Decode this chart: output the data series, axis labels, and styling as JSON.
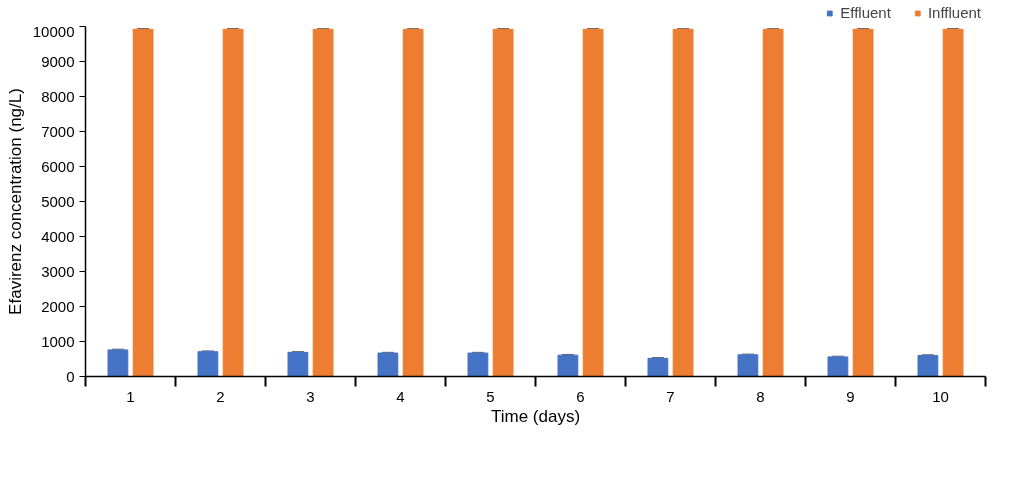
{
  "chart_data": {
    "type": "bar",
    "xlabel": "Time (days)",
    "ylabel": "Efavirenz concentration (ng/L)",
    "categories": [
      "1",
      "2",
      "3",
      "4",
      "5",
      "6",
      "7",
      "8",
      "9",
      "10"
    ],
    "series": [
      {
        "name": "Effluent",
        "color": "#4472c4",
        "values": [
          760,
          710,
          690,
          670,
          670,
          610,
          520,
          620,
          560,
          600
        ],
        "errors": [
          20,
          20,
          20,
          20,
          20,
          20,
          20,
          20,
          20,
          20
        ]
      },
      {
        "name": "Inffluent",
        "color": "#ed7d31",
        "values": [
          9920,
          9920,
          9920,
          9920,
          9920,
          9920,
          9920,
          9920,
          9920,
          9920
        ],
        "errors": [
          20,
          20,
          20,
          20,
          20,
          20,
          20,
          20,
          20,
          20
        ]
      }
    ],
    "ylim": [
      0,
      10000
    ],
    "yticks": [
      0,
      1000,
      2000,
      3000,
      4000,
      5000,
      6000,
      7000,
      8000,
      9000,
      10000
    ],
    "grid": false,
    "legend": "top right"
  }
}
